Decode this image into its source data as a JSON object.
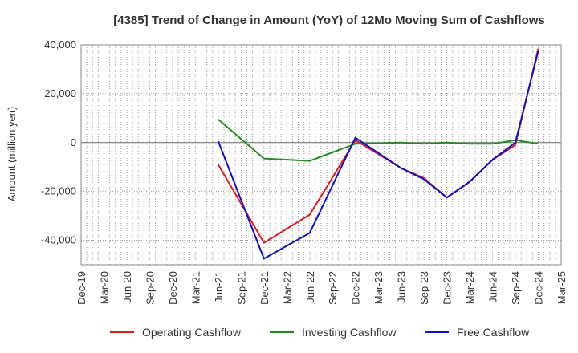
{
  "chart_data": {
    "type": "line",
    "title": "[4385]  Trend of Change in Amount (YoY) of 12Mo Moving Sum of Cashflows",
    "xlabel": "",
    "ylabel": "Amount (million yen)",
    "ylim": [
      -50000,
      40000
    ],
    "yticks": [
      40000,
      20000,
      0,
      -20000,
      -40000
    ],
    "ytick_labels": [
      "40,000",
      "20,000",
      "0",
      "-20,000",
      "-40,000"
    ],
    "categories": [
      "Dec-19",
      "Mar-20",
      "Jun-20",
      "Sep-20",
      "Dec-20",
      "Mar-21",
      "Jun-21",
      "Sep-21",
      "Dec-21",
      "Mar-22",
      "Jun-22",
      "Sep-22",
      "Dec-22",
      "Mar-23",
      "Jun-23",
      "Sep-23",
      "Dec-23",
      "Mar-24",
      "Jun-24",
      "Sep-24",
      "Dec-24",
      "Mar-25"
    ],
    "grid": true,
    "legend_position": "bottom",
    "series": [
      {
        "name": "Operating Cashflow",
        "color": "#e31a1c",
        "values": [
          null,
          null,
          null,
          null,
          null,
          null,
          -9000,
          null,
          -41000,
          null,
          -29500,
          null,
          1000,
          null,
          -10500,
          -14500,
          -22500,
          -16000,
          -7000,
          -1000,
          38500,
          null
        ]
      },
      {
        "name": "Investing Cashflow",
        "color": "#228b22",
        "values": [
          null,
          null,
          null,
          null,
          null,
          null,
          9500,
          null,
          -6500,
          null,
          -7500,
          null,
          -500,
          null,
          0,
          -500,
          0,
          -500,
          -500,
          1000,
          -500,
          null
        ]
      },
      {
        "name": "Free Cashflow",
        "color": "#1010c8",
        "values": [
          null,
          null,
          null,
          null,
          null,
          null,
          500,
          null,
          -47500,
          null,
          -37000,
          null,
          2000,
          null,
          -10500,
          -15000,
          -22500,
          -16000,
          -7000,
          0,
          37500,
          null
        ]
      }
    ]
  }
}
